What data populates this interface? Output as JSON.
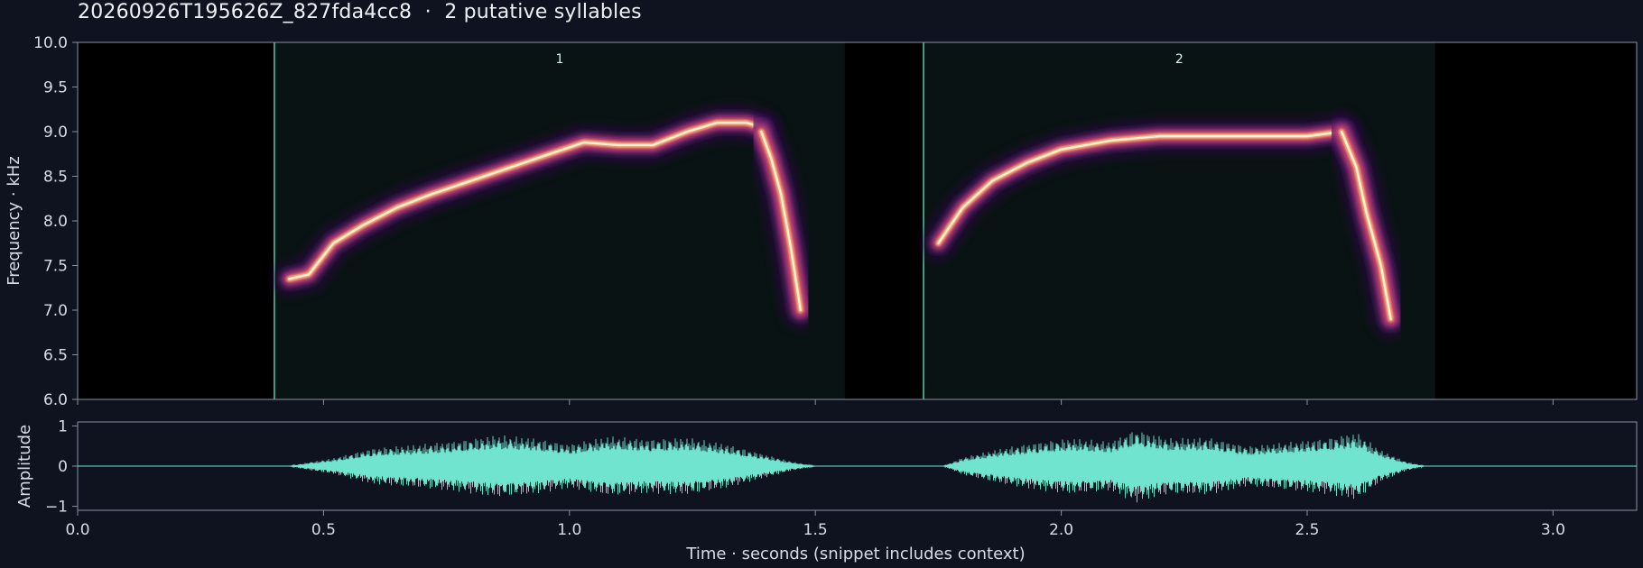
{
  "title": "20260926T195626Z_827fda4cc8  ·  2 putative syllables",
  "colors": {
    "background": "#0f1320",
    "plot_bg": "#000000",
    "segment_fill": "#0a1313",
    "segment_line": "#5ed6b4",
    "waveform": "#70e4cf",
    "axis": "#8a90a0"
  },
  "chart_data": [
    {
      "type": "heatmap",
      "name": "spectrogram",
      "title": "",
      "ylabel": "Frequency · kHz",
      "xlim": [
        0.0,
        3.17
      ],
      "ylim": [
        6.0,
        10.0
      ],
      "yticks": [
        "6.0",
        "6.5",
        "7.0",
        "7.5",
        "8.0",
        "8.5",
        "9.0",
        "9.5",
        "10.0"
      ],
      "colormap": "magma",
      "segments": [
        {
          "label": "1",
          "start": 0.4,
          "end": 1.56
        },
        {
          "label": "2",
          "start": 1.72,
          "end": 2.76
        }
      ],
      "ridges": [
        {
          "t": [
            0.43,
            0.47,
            0.52,
            0.58,
            0.65,
            0.72,
            0.8,
            0.88,
            0.96,
            1.03,
            1.1,
            1.17,
            1.24,
            1.3,
            1.36,
            1.39
          ],
          "f": [
            7.35,
            7.4,
            7.75,
            7.95,
            8.15,
            8.3,
            8.45,
            8.6,
            8.75,
            8.88,
            8.85,
            8.85,
            9.0,
            9.1,
            9.1,
            9.05
          ]
        },
        {
          "t": [
            1.39,
            1.41,
            1.43,
            1.45,
            1.47
          ],
          "f": [
            9.0,
            8.7,
            8.3,
            7.7,
            7.0
          ]
        },
        {
          "t": [
            1.75,
            1.8,
            1.86,
            1.93,
            2.0,
            2.1,
            2.2,
            2.3,
            2.4,
            2.5,
            2.57
          ],
          "f": [
            7.75,
            8.15,
            8.45,
            8.65,
            8.8,
            8.9,
            8.95,
            8.95,
            8.95,
            8.95,
            9.0
          ]
        },
        {
          "t": [
            2.57,
            2.6,
            2.62,
            2.65,
            2.67
          ],
          "f": [
            9.0,
            8.6,
            8.1,
            7.5,
            6.9
          ]
        }
      ]
    },
    {
      "type": "area",
      "name": "waveform",
      "xlabel": "Time · seconds (snippet includes context)",
      "ylabel": "Amplitude",
      "xlim": [
        0.0,
        3.17
      ],
      "ylim": [
        -1.1,
        1.1
      ],
      "xticks": [
        "0.0",
        "0.5",
        "1.0",
        "1.5",
        "2.0",
        "2.5",
        "3.0"
      ],
      "yticks": [
        "−1",
        "0",
        "1"
      ],
      "envelope": {
        "t": [
          0.0,
          0.43,
          0.47,
          0.52,
          0.6,
          0.7,
          0.78,
          0.85,
          0.92,
          1.0,
          1.08,
          1.16,
          1.24,
          1.32,
          1.38,
          1.45,
          1.5,
          1.76,
          1.8,
          1.88,
          1.95,
          2.02,
          2.1,
          2.15,
          2.22,
          2.3,
          2.38,
          2.46,
          2.54,
          2.6,
          2.65,
          2.7,
          2.74,
          3.17
        ],
        "amp": [
          0.0,
          0.0,
          0.1,
          0.2,
          0.45,
          0.55,
          0.65,
          0.78,
          0.72,
          0.55,
          0.75,
          0.68,
          0.72,
          0.55,
          0.35,
          0.12,
          0.0,
          0.0,
          0.22,
          0.45,
          0.6,
          0.7,
          0.62,
          0.92,
          0.7,
          0.72,
          0.5,
          0.6,
          0.7,
          0.85,
          0.4,
          0.12,
          0.0,
          0.0
        ]
      }
    }
  ]
}
